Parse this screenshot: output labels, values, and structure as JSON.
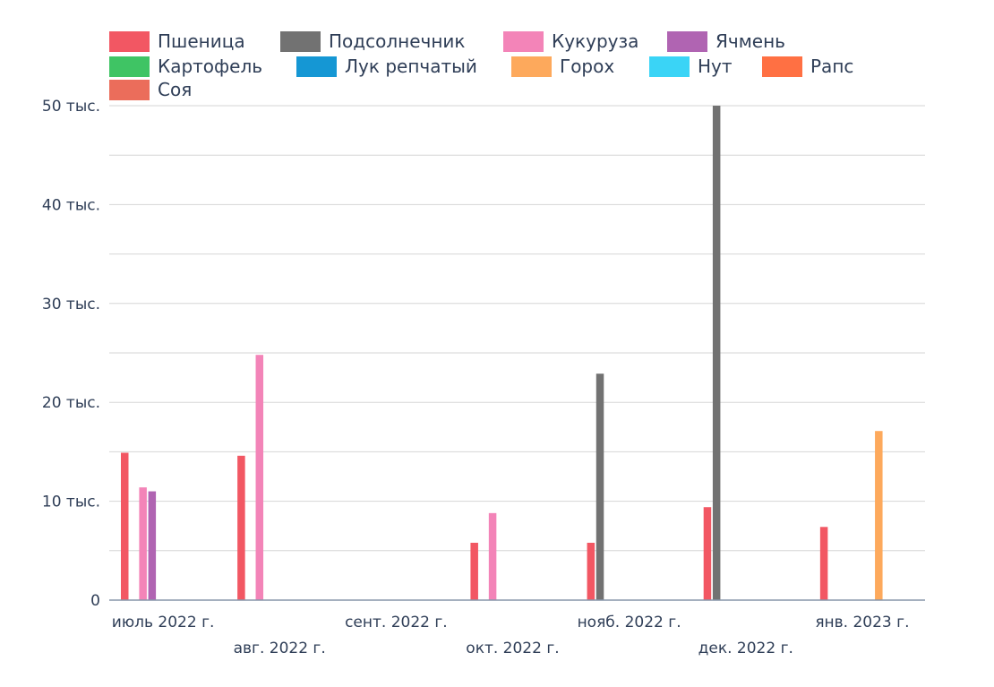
{
  "chart_data": {
    "type": "bar",
    "title": "",
    "xlabel": "",
    "ylabel": "",
    "categories": [
      "июль 2022 г.",
      "авг. 2022 г.",
      "сент. 2022 г.",
      "окт. 2022 г.",
      "нояб. 2022 г.",
      "дек. 2022 г.",
      "янв. 2023 г."
    ],
    "ylim": [
      0,
      50000
    ],
    "y_ticks": [
      {
        "value": 0,
        "label": "0"
      },
      {
        "value": 10000,
        "label": "10 тыс."
      },
      {
        "value": 20000,
        "label": "20 тыс."
      },
      {
        "value": 30000,
        "label": "30 тыс."
      },
      {
        "value": 40000,
        "label": "40 тыс."
      },
      {
        "value": 50000,
        "label": "50 тыс."
      }
    ],
    "grid": true,
    "legend_position": "top",
    "series": [
      {
        "name": "Пшеница",
        "color": "#f25763",
        "values": [
          14900,
          14600,
          0,
          5800,
          5800,
          9400,
          7400
        ]
      },
      {
        "name": "Подсолнечник",
        "color": "#727272",
        "values": [
          0,
          0,
          0,
          0,
          22900,
          50000,
          0
        ]
      },
      {
        "name": "Кукуруза",
        "color": "#f384b8",
        "values": [
          11400,
          24800,
          0,
          8800,
          0,
          0,
          0
        ]
      },
      {
        "name": "Ячмень",
        "color": "#b064b2",
        "values": [
          11000,
          0,
          0,
          0,
          0,
          0,
          0
        ]
      },
      {
        "name": "Картофель",
        "color": "#3fc464",
        "values": [
          0,
          0,
          0,
          0,
          0,
          0,
          0
        ]
      },
      {
        "name": "Лук репчатый",
        "color": "#1597d4",
        "values": [
          0,
          0,
          0,
          0,
          0,
          0,
          0
        ]
      },
      {
        "name": "Горох",
        "color": "#fda95c",
        "values": [
          0,
          0,
          0,
          0,
          0,
          0,
          17100
        ]
      },
      {
        "name": "Нут",
        "color": "#3ad4f6",
        "values": [
          0,
          0,
          0,
          0,
          0,
          0,
          0
        ]
      },
      {
        "name": "Рапс",
        "color": "#ff7043",
        "values": [
          0,
          0,
          0,
          0,
          0,
          0,
          0
        ]
      },
      {
        "name": "Соя",
        "color": "#eb6d5b",
        "values": [
          0,
          0,
          0,
          0,
          0,
          0,
          0
        ]
      }
    ]
  }
}
